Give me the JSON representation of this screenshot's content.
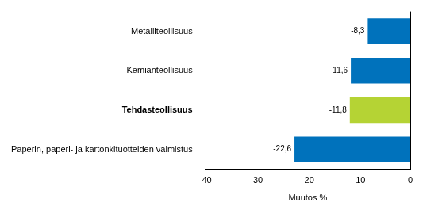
{
  "chart_data": {
    "type": "bar",
    "orientation": "horizontal",
    "categories": [
      "Metalliteollisuus",
      "Kemianteollisuus",
      "Tehdasteollisuus",
      "Paperin, paperi- ja kartonkituotteiden valmistus"
    ],
    "values": [
      -8.3,
      -11.6,
      -11.8,
      -22.6
    ],
    "value_labels": [
      "-8,3",
      "-11,6",
      "-11,8",
      "-22,6"
    ],
    "colors": [
      "#0072bc",
      "#0072bc",
      "#b5d334",
      "#0072bc"
    ],
    "x_label": "Muutos %",
    "xlim": [
      -40,
      0
    ],
    "xticks": [
      -40,
      -30,
      -20,
      -10,
      0
    ],
    "grid": false,
    "data_labels": true
  }
}
